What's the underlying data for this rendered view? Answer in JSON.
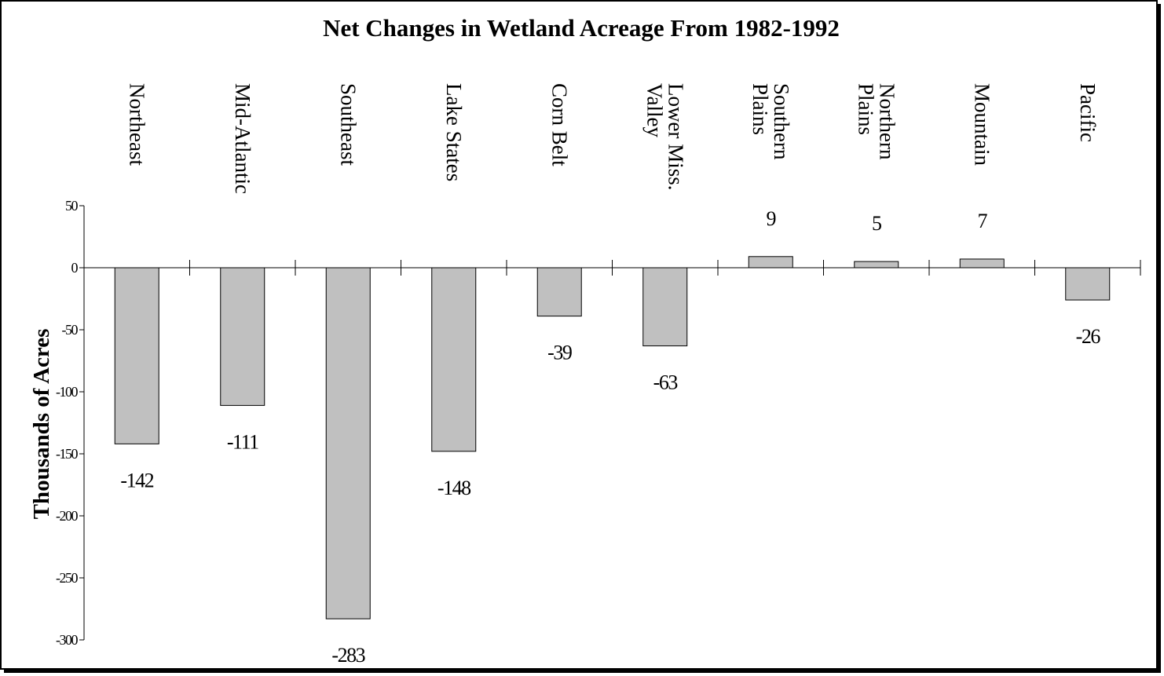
{
  "chart_data": {
    "type": "bar",
    "title": "Net Changes in Wetland Acreage From 1982-1992",
    "y_label": "Thousands of Acres",
    "categories": [
      "Northeast",
      "Mid-Atlantic",
      "Southeast",
      "Lake States",
      "Corn Belt",
      "Lower Miss.\nValley",
      "Southern\nPlains",
      "Northern\nPlains",
      "Mountain",
      "Pacific"
    ],
    "values": [
      -142,
      -111,
      -283,
      -148,
      -39,
      -63,
      9,
      5,
      7,
      -26
    ],
    "color": "#c0c0c0",
    "ylim": [
      -300,
      50
    ],
    "yticks": [
      50,
      0,
      -50,
      -100,
      -150,
      -200,
      -250,
      -300
    ]
  }
}
